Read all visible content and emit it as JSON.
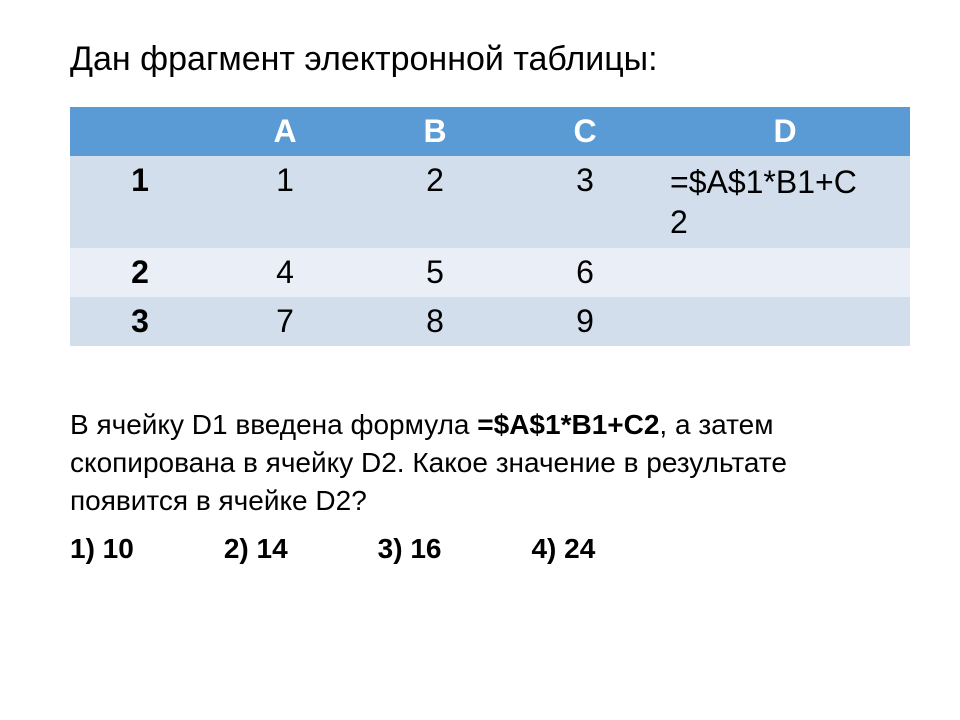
{
  "title": "Дан фрагмент электронной таблицы:",
  "table": {
    "type": "table",
    "header_bg": "#5b9bd5",
    "header_fg": "#ffffff",
    "row_bg_odd": "#d2deeb",
    "row_bg_even": "#eaeff7",
    "font_size_pt": 24,
    "columns": [
      "",
      "A",
      "B",
      "C",
      "D"
    ],
    "rows": [
      {
        "hdr": "1",
        "A": "1",
        "B": "2",
        "C": "3",
        "D_line1": "=$A$1*B1+C",
        "D_line2": "2"
      },
      {
        "hdr": "2",
        "A": "4",
        "B": "5",
        "C": "6",
        "D": ""
      },
      {
        "hdr": "3",
        "A": "7",
        "B": "8",
        "C": "9",
        "D": ""
      }
    ]
  },
  "question": {
    "pre": "В ячейку D1 введена формула ",
    "formula": "=$A$1*B1+C2",
    "post": ", а затем скопирована в ячейку D2. Какое значение в результате появится в ячейке D2?"
  },
  "answers": {
    "a1": "1) 10",
    "a2": "2) 14",
    "a3": "3) 16",
    "a4": "4) 24"
  }
}
